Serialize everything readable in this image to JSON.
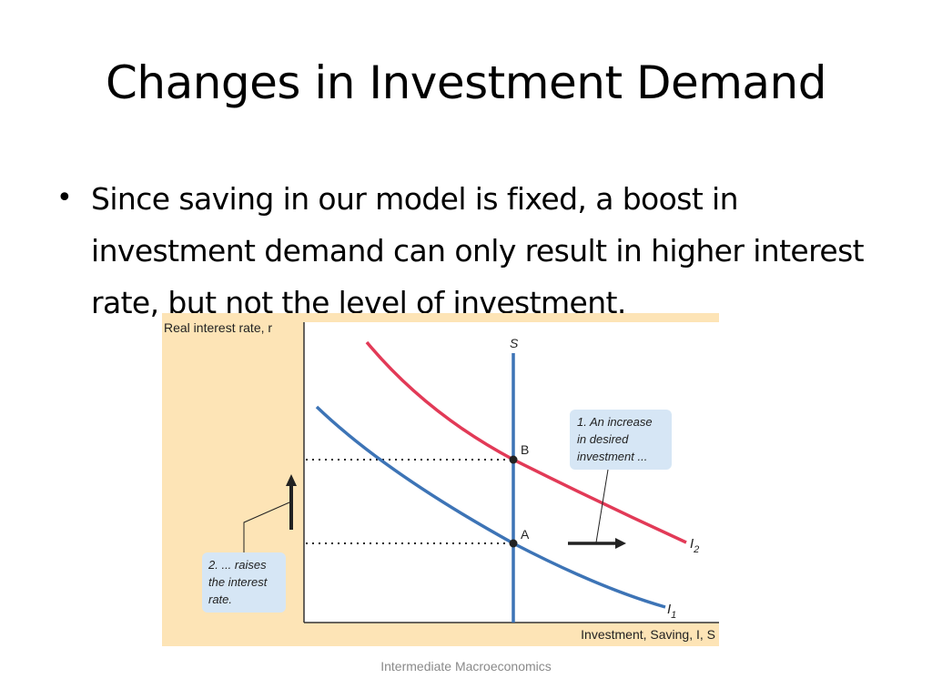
{
  "slide": {
    "title": "Changes in Investment Demand",
    "bullet": "Since saving in our model is fixed, a boost in investment demand can only result in higher interest rate, but not the level of investment.",
    "footer": "Intermediate Macroeconomics"
  },
  "diagram": {
    "y_axis_label": "Real interest rate, r",
    "x_axis_label": "Investment, Saving, I, S",
    "saving_label": "S",
    "point_a": "A",
    "point_b": "B",
    "curve_i1": {
      "main": "I",
      "sub": "1"
    },
    "curve_i2": {
      "main": "I",
      "sub": "2"
    },
    "note_increase": [
      "1. An increase",
      "in desired",
      "investment ..."
    ],
    "note_raises": [
      "2. ... raises",
      "the interest",
      "rate."
    ],
    "colors": {
      "panel_bg": "#fde4b6",
      "i1_curve": "#3d74b6",
      "i2_curve": "#e23a57",
      "saving_line": "#3d74b6",
      "note_bg": "#d6e6f5"
    }
  }
}
